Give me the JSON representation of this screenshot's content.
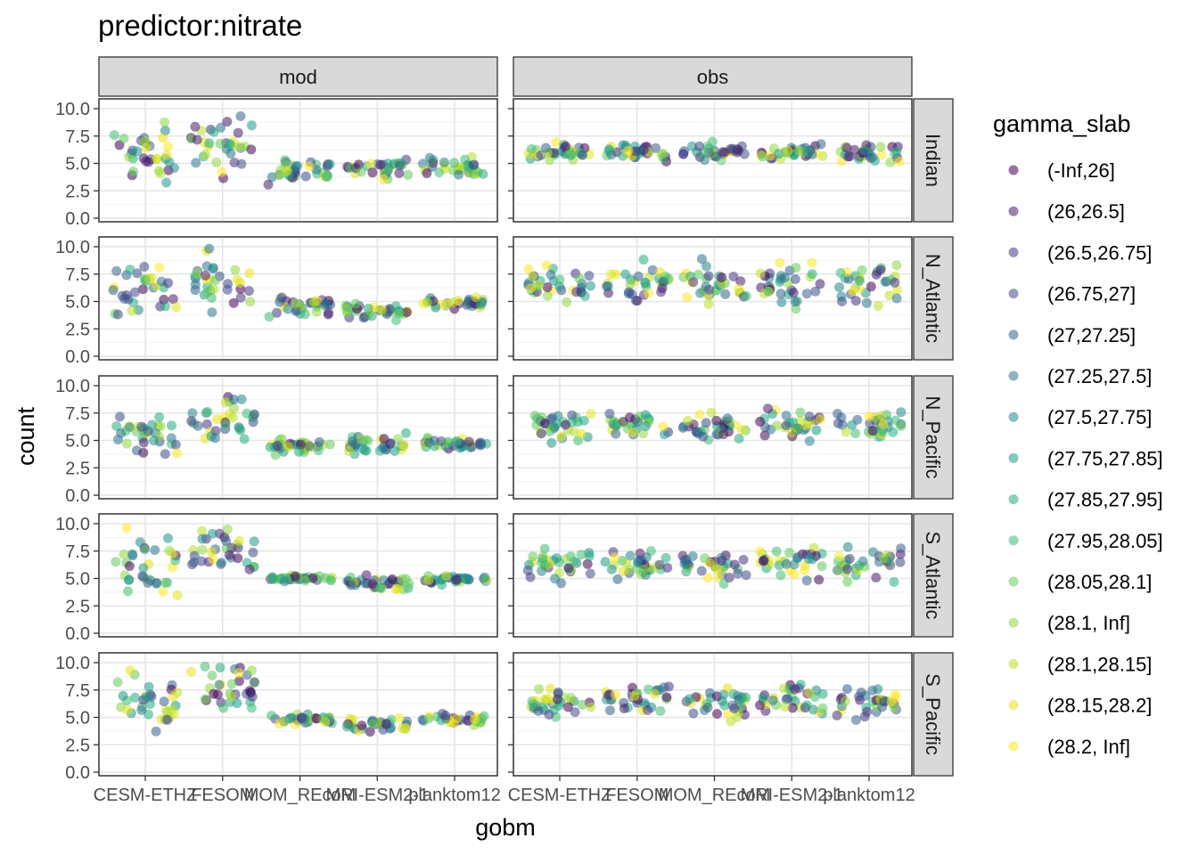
{
  "chart_data": {
    "type": "scatter",
    "title": "predictor:nitrate",
    "xlabel": "gobm",
    "ylabel": "count",
    "ylim": [
      0,
      10
    ],
    "y_ticks": [
      "0.0",
      "2.5",
      "5.0",
      "7.5",
      "10.0"
    ],
    "x_categories": [
      "CESM-ETHZ",
      "FESOM",
      "MOM_REcoM",
      "MRI-ESM2-1",
      "planktom12"
    ],
    "facet_columns": [
      "mod",
      "obs"
    ],
    "facet_rows": [
      "Indian",
      "N_Atlantic",
      "N_Pacific",
      "S_Atlantic",
      "S_Pacific"
    ],
    "grid": true,
    "legend": {
      "title": "gamma_slab",
      "placement": "right",
      "entries": [
        {
          "label": "(-Inf,26]",
          "color": "#440154"
        },
        {
          "label": "(26,26.5]",
          "color": "#481c6e"
        },
        {
          "label": "(26.5,26.75]",
          "color": "#453581"
        },
        {
          "label": "(26.75,27]",
          "color": "#3d4d8a"
        },
        {
          "label": "(27,27.25]",
          "color": "#34618d"
        },
        {
          "label": "(27.25,27.5]",
          "color": "#2b748e"
        },
        {
          "label": "(27.5,27.75]",
          "color": "#24878e"
        },
        {
          "label": "(27.75,27.85]",
          "color": "#1f998a"
        },
        {
          "label": "(27.85,27.95]",
          "color": "#25ac82"
        },
        {
          "label": "(27.95,28.05]",
          "color": "#40bc72"
        },
        {
          "label": "(28.05,28.1]",
          "color": "#64cb5d"
        },
        {
          "label": "(28.1, Inf]",
          "color": "#8fd744"
        },
        {
          "label": "(28.1,28.15]",
          "color": "#bade28"
        },
        {
          "label": "(28.15,28.2]",
          "color": "#e2e418"
        },
        {
          "label": "(28.2, Inf]",
          "color": "#fde725"
        }
      ]
    },
    "series_summary": [
      {
        "col": "mod",
        "row": "Indian",
        "centers": [
          6.0,
          6.3,
          4.3,
          4.5,
          4.7
        ],
        "spreads": [
          2.6,
          3.0,
          1.1,
          1.0,
          0.9
        ]
      },
      {
        "col": "mod",
        "row": "N_Atlantic",
        "centers": [
          6.4,
          6.8,
          4.6,
          4.2,
          4.9
        ],
        "spreads": [
          2.8,
          2.7,
          1.0,
          0.9,
          0.5
        ]
      },
      {
        "col": "mod",
        "row": "N_Pacific",
        "centers": [
          5.6,
          6.9,
          4.6,
          4.5,
          4.7
        ],
        "spreads": [
          1.8,
          2.3,
          0.8,
          1.0,
          0.6
        ]
      },
      {
        "col": "mod",
        "row": "S_Atlantic",
        "centers": [
          6.2,
          7.6,
          5.0,
          4.6,
          4.9
        ],
        "spreads": [
          2.9,
          2.4,
          0.3,
          0.6,
          0.4
        ]
      },
      {
        "col": "mod",
        "row": "S_Pacific",
        "centers": [
          6.5,
          7.4,
          4.8,
          4.4,
          4.8
        ],
        "spreads": [
          3.0,
          2.6,
          0.5,
          0.6,
          0.5
        ]
      },
      {
        "col": "obs",
        "row": "Indian",
        "centers": [
          6.0,
          6.0,
          6.0,
          6.0,
          6.0
        ],
        "spreads": [
          0.8,
          0.8,
          0.8,
          0.8,
          0.8
        ]
      },
      {
        "col": "obs",
        "row": "N_Atlantic",
        "centers": [
          6.5,
          6.5,
          6.4,
          6.3,
          6.4
        ],
        "spreads": [
          2.2,
          2.2,
          2.2,
          2.2,
          2.2
        ]
      },
      {
        "col": "obs",
        "row": "N_Pacific",
        "centers": [
          6.3,
          6.4,
          6.2,
          6.3,
          6.3
        ],
        "spreads": [
          1.4,
          1.4,
          1.4,
          1.4,
          1.4
        ]
      },
      {
        "col": "obs",
        "row": "S_Atlantic",
        "centers": [
          6.3,
          6.5,
          6.3,
          6.4,
          6.3
        ],
        "spreads": [
          1.6,
          1.6,
          1.6,
          1.6,
          1.6
        ]
      },
      {
        "col": "obs",
        "row": "S_Pacific",
        "centers": [
          6.4,
          6.6,
          6.4,
          6.4,
          6.3
        ],
        "spreads": [
          1.5,
          1.5,
          1.5,
          1.5,
          1.5
        ]
      }
    ]
  }
}
